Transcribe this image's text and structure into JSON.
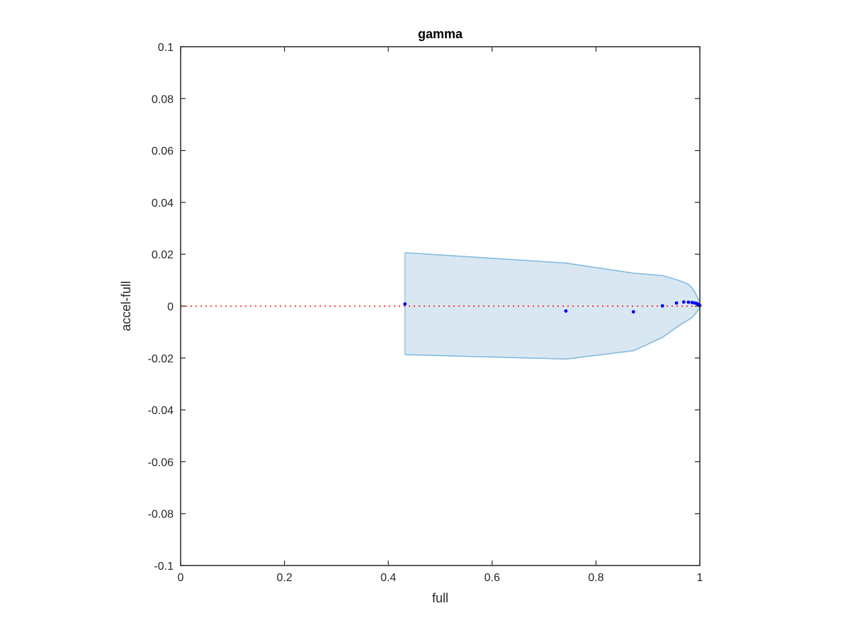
{
  "chart_data": {
    "type": "scatter",
    "title": "gamma",
    "xlabel": "full",
    "ylabel": "accel-full",
    "xlim": [
      0,
      1
    ],
    "ylim": [
      -0.1,
      0.1
    ],
    "xticks": [
      0,
      0.2,
      0.4,
      0.6,
      0.8,
      1
    ],
    "xtick_labels": [
      "0",
      "0.2",
      "0.4",
      "0.6",
      "0.8",
      "1"
    ],
    "yticks": [
      -0.1,
      -0.08,
      -0.06,
      -0.04,
      -0.02,
      0,
      0.02,
      0.04,
      0.06,
      0.08,
      0.1
    ],
    "ytick_labels": [
      "-0.1",
      "-0.08",
      "-0.06",
      "-0.04",
      "-0.02",
      "0",
      "0.02",
      "0.04",
      "0.06",
      "0.08",
      "0.1"
    ],
    "grid": false,
    "points": {
      "color": "#0000ff",
      "x": [
        0.432,
        0.742,
        0.872,
        0.928,
        0.955,
        0.969,
        0.978,
        0.985,
        0.99,
        0.994,
        0.997,
        0.999,
        1.0
      ],
      "y": [
        0.0008,
        -0.0019,
        -0.0022,
        0.0001,
        0.0012,
        0.0016,
        0.0015,
        0.0014,
        0.0012,
        0.001,
        0.0007,
        0.0004,
        0.0002
      ]
    },
    "band": {
      "fill_color": "#d9e7f3",
      "line_color": "#85bbde",
      "x": [
        0.432,
        0.742,
        0.872,
        0.928,
        0.955,
        0.969,
        0.978,
        0.985,
        0.99,
        0.994,
        0.997,
        1.0
      ],
      "upper": [
        0.0206,
        0.0166,
        0.0127,
        0.0118,
        0.0102,
        0.0092,
        0.0084,
        0.007,
        0.0055,
        0.004,
        0.0028,
        0.0015
      ],
      "lower": [
        -0.0187,
        -0.0204,
        -0.0172,
        -0.0121,
        -0.0082,
        -0.0064,
        -0.0053,
        -0.0044,
        -0.0033,
        -0.0023,
        -0.0014,
        -0.0008
      ]
    },
    "reference_line": {
      "y": 0,
      "color": "#ff0000",
      "style": "dotted"
    }
  }
}
